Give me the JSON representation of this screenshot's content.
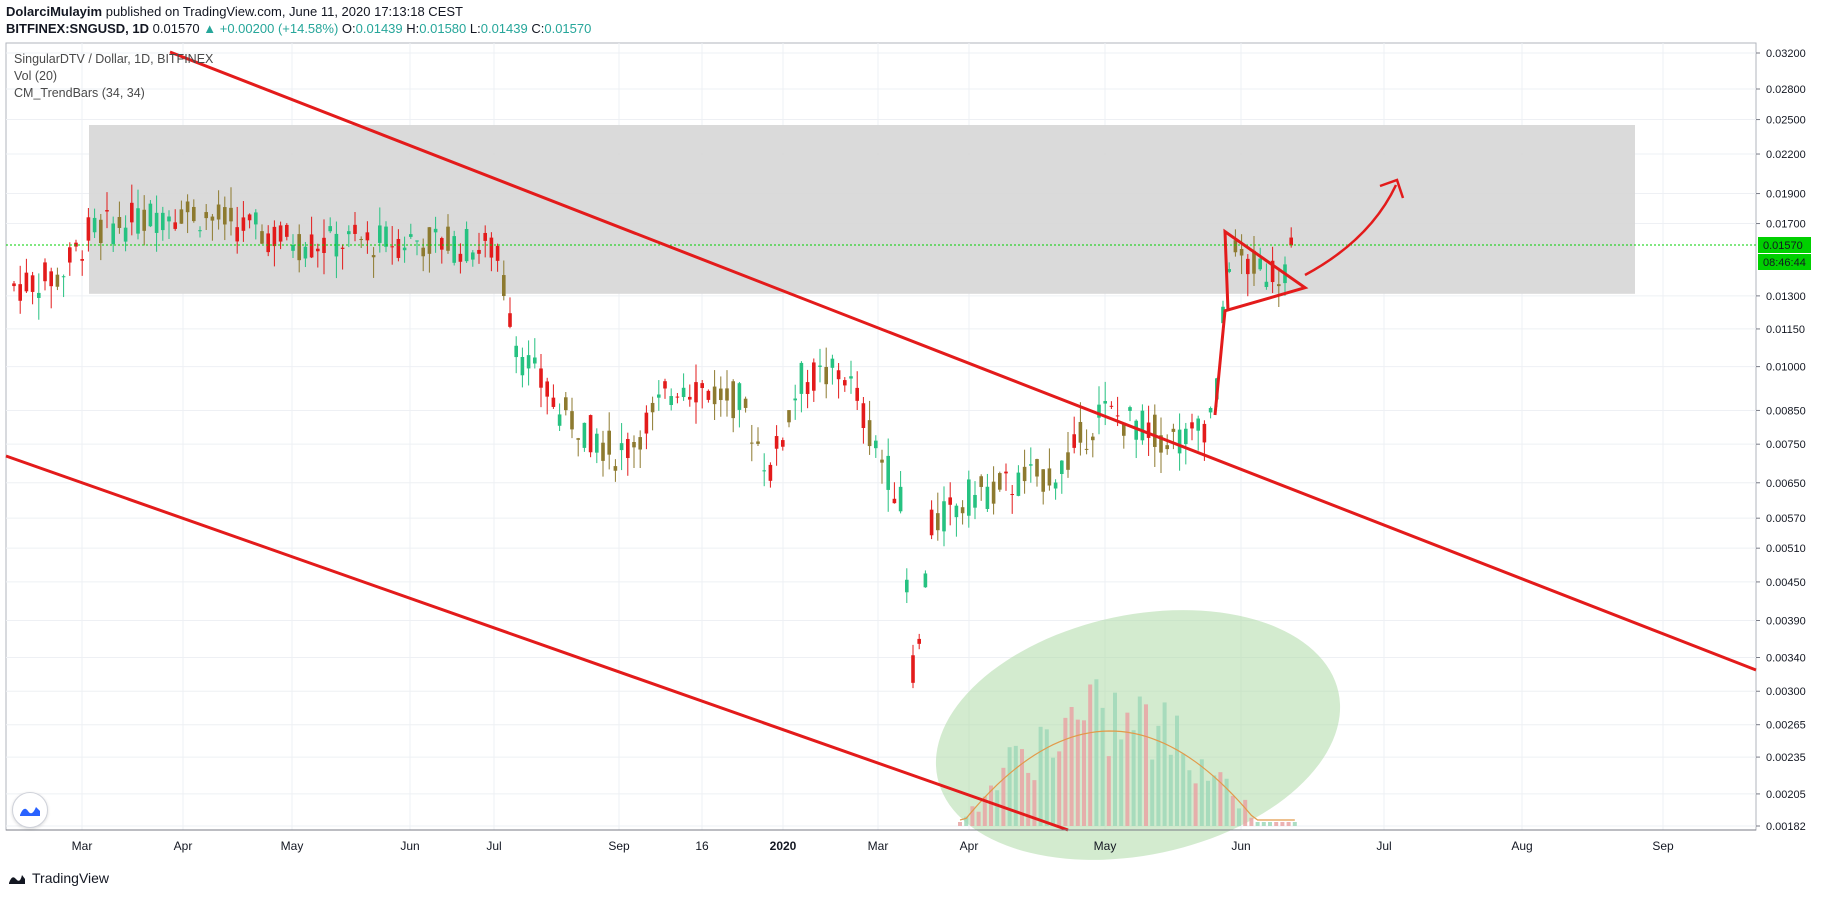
{
  "header": {
    "author": "DolarciMulayim",
    "published_text": "published on TradingView.com, June 11, 2020 17:13:18 CEST",
    "symbol": "BITFINEX:SNGUSD, 1D",
    "last": "0.01570",
    "change": "▲ +0.00200 (+14.58%)",
    "o_label": "O:",
    "o": "0.01439",
    "h_label": "H:",
    "h": "0.01580",
    "l_label": "L:",
    "l": "0.01439",
    "c_label": "C:",
    "c": "0.01570"
  },
  "legend": {
    "series_title": "SingularDTV / Dollar, 1D, BITFINEX",
    "indicator1": "Vol (20)",
    "indicator2": "CM_TrendBars (34, 34)"
  },
  "price_tag": {
    "value": "0.01570",
    "countdown": "08:46:44"
  },
  "footer": {
    "brand": "TradingView"
  },
  "colors": {
    "trendline": "#e31b1b",
    "zone": "#d6d6d6",
    "ellipse": "#a8d8a0",
    "bull": "#26c281",
    "bear": "#e31b1b",
    "neutral": "#8d7a2f",
    "last_price": "#00e000"
  },
  "chart_data": {
    "type": "candlestick",
    "title": "SingularDTV / Dollar, 1D, BITFINEX",
    "y_scale": "log",
    "y_ticks": [
      "0.03200",
      "0.02800",
      "0.02500",
      "0.02200",
      "0.01900",
      "0.01700",
      "0.01300",
      "0.01150",
      "0.01000",
      "0.00850",
      "0.00750",
      "0.00650",
      "0.00570",
      "0.00510",
      "0.00450",
      "0.00390",
      "0.00340",
      "0.00300",
      "0.00265",
      "0.00235",
      "0.00205",
      "0.00182"
    ],
    "x_ticks": [
      "Mar",
      "Apr",
      "May",
      "Jun",
      "Jul",
      "Sep",
      "16",
      "2020",
      "Mar",
      "Apr",
      "May",
      "Jun",
      "Jul",
      "Aug",
      "Sep"
    ],
    "last_price": 0.0157,
    "ylim": [
      0.00182,
      0.032
    ],
    "resistance_zone": {
      "low": 0.0131,
      "high": 0.0245
    },
    "triangle": {
      "top": 0.0165,
      "bottom": 0.0123,
      "apex": 0.0134
    },
    "grid": true
  }
}
